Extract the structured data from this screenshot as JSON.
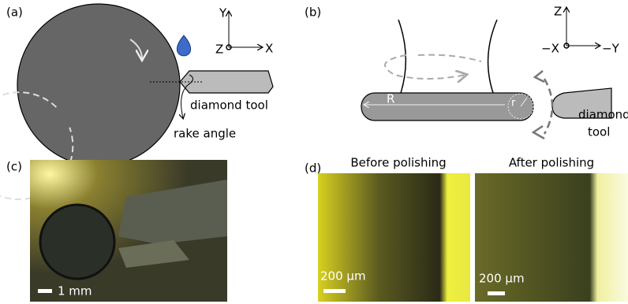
{
  "panel_a": {
    "label": "(a)",
    "axis_labels": [
      "Y",
      "Z",
      "X"
    ],
    "tool_label": "diamond tool",
    "angle_label": "rake angle"
  },
  "panel_b": {
    "label": "(b)",
    "axis_labels": [
      "Z",
      "−X",
      "−Y"
    ],
    "radius_labels": [
      "R",
      "r"
    ],
    "tool_label": [
      "diamond",
      "tool"
    ]
  },
  "panel_c": {
    "label": "(c)",
    "scale_bar": "1 mm"
  },
  "panel_d": {
    "label": "(d)",
    "images": [
      {
        "title": "Before polishing",
        "scale_bar": "200 μm"
      },
      {
        "title": "After polishing",
        "scale_bar": "200 μm"
      }
    ]
  }
}
